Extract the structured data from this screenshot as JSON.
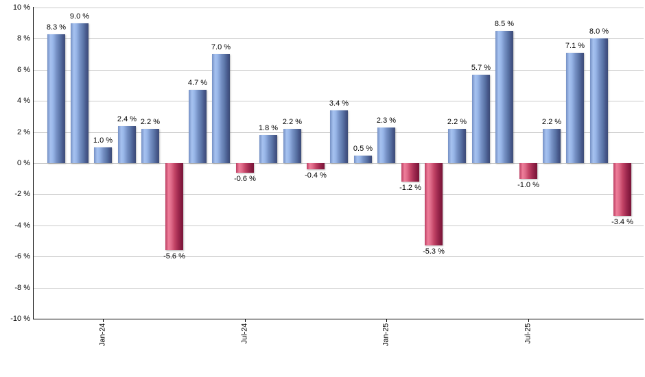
{
  "chart_data": {
    "type": "bar",
    "title": "",
    "xlabel": "",
    "ylabel": "",
    "ylim": [
      -10,
      10
    ],
    "ytick_step": 2,
    "ytick_suffix": " %",
    "value_suffix": " %",
    "grid": true,
    "legend": "none",
    "values": [
      8.3,
      9.0,
      1.0,
      2.4,
      2.2,
      -5.6,
      4.7,
      7.0,
      -0.6,
      1.8,
      2.2,
      -0.4,
      3.4,
      0.5,
      2.3,
      -1.2,
      -5.3,
      2.2,
      5.7,
      8.5,
      -1.0,
      2.2,
      7.1,
      8.0,
      -3.4
    ],
    "xticks": [
      {
        "index": 2,
        "label": "Jan-24"
      },
      {
        "index": 8,
        "label": "Jul-24"
      },
      {
        "index": 14,
        "label": "Jan-25"
      },
      {
        "index": 20,
        "label": "Jul-25"
      }
    ],
    "colors": {
      "positive_light": "#a6c2f0",
      "positive_dark": "#3c4c76",
      "negative_light": "#ee7e9a",
      "negative_dark": "#7a1538",
      "gridline": "#c9c9c9",
      "axis": "#000000",
      "text": "#000000"
    }
  }
}
